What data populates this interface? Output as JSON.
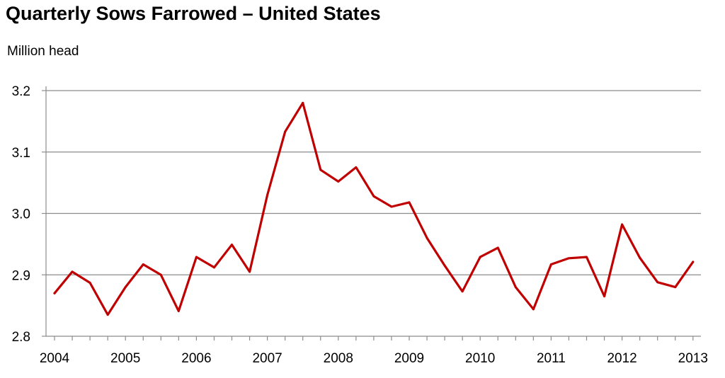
{
  "chart_data": {
    "type": "line",
    "title": "Quarterly Sows Farrowed – United States",
    "ylabel": "Million head",
    "xlabel": "",
    "ylim": [
      2.8,
      3.2
    ],
    "yticks": [
      "2.8",
      "2.9",
      "3.0",
      "3.1",
      "3.2"
    ],
    "x_tick_labels": [
      "2004",
      "2005",
      "2006",
      "2007",
      "2008",
      "2009",
      "2010",
      "2011",
      "2012",
      "2013"
    ],
    "grid": "horizontal",
    "line_color": "#c00000",
    "x": [
      "2004 Q1",
      "2004 Q2",
      "2004 Q3",
      "2004 Q4",
      "2005 Q1",
      "2005 Q2",
      "2005 Q3",
      "2005 Q4",
      "2006 Q1",
      "2006 Q2",
      "2006 Q3",
      "2006 Q4",
      "2007 Q1",
      "2007 Q2",
      "2007 Q3",
      "2007 Q4",
      "2008 Q1",
      "2008 Q2",
      "2008 Q3",
      "2008 Q4",
      "2009 Q1",
      "2009 Q2",
      "2009 Q3",
      "2009 Q4",
      "2010 Q1",
      "2010 Q2",
      "2010 Q3",
      "2010 Q4",
      "2011 Q1",
      "2011 Q2",
      "2011 Q3",
      "2011 Q4",
      "2012 Q1",
      "2012 Q2",
      "2012 Q3",
      "2012 Q4",
      "2013 Q1"
    ],
    "series": [
      {
        "values": [
          2.87,
          2.905,
          2.887,
          2.835,
          2.88,
          2.917,
          2.9,
          2.841,
          2.929,
          2.912,
          2.949,
          2.905,
          3.03,
          3.133,
          3.18,
          3.071,
          3.052,
          3.075,
          3.028,
          3.011,
          3.018,
          2.96,
          2.915,
          2.873,
          2.929,
          2.944,
          2.88,
          2.844,
          2.917,
          2.927,
          2.929,
          2.865,
          2.982,
          2.928,
          2.888,
          2.88,
          2.921
        ]
      }
    ]
  }
}
